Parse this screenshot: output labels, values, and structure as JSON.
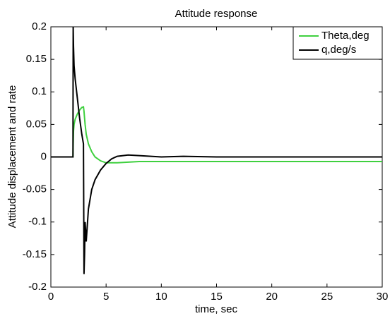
{
  "chart_data": {
    "type": "line",
    "title": "Attitude response",
    "x_label": "time, sec",
    "y_label": "Attitude displacement and rate",
    "x": [
      0,
      2,
      2.02,
      2.05,
      2.1,
      2.2,
      2.4,
      2.6,
      2.8,
      2.95,
      3.0,
      3.05,
      3.1,
      3.2,
      3.4,
      3.7,
      4,
      4.5,
      5,
      5.5,
      6,
      7,
      8,
      10,
      12,
      15,
      20,
      25,
      30
    ],
    "series": [
      {
        "name": "Theta,deg",
        "color": "#3fd03f",
        "values": [
          0,
          0,
          0.02,
          0.04,
          0.05,
          0.058,
          0.066,
          0.072,
          0.076,
          0.077,
          0.07,
          0.06,
          0.05,
          0.035,
          0.02,
          0.008,
          0,
          -0.006,
          -0.009,
          -0.009,
          -0.009,
          -0.008,
          -0.007,
          -0.007,
          -0.007,
          -0.007,
          -0.007,
          -0.007,
          -0.007
        ]
      },
      {
        "name": "q,deg/s",
        "color": "#000000",
        "values": [
          0,
          0,
          0.2,
          0.17,
          0.14,
          0.12,
          0.09,
          0.06,
          0.035,
          0.02,
          -0.18,
          -0.15,
          -0.1,
          -0.13,
          -0.08,
          -0.05,
          -0.035,
          -0.02,
          -0.01,
          -0.003,
          0.001,
          0.003,
          0.002,
          0,
          0.001,
          0,
          0,
          0,
          0
        ]
      }
    ],
    "xlim": [
      0,
      30
    ],
    "xticks": [
      0,
      5,
      10,
      15,
      20,
      25,
      30
    ],
    "ylim": [
      -0.2,
      0.2
    ],
    "yticks": [
      -0.2,
      -0.15,
      -0.1,
      -0.05,
      0,
      0.05,
      0.1,
      0.15,
      0.2
    ],
    "grid": false,
    "legend": "upper right"
  }
}
